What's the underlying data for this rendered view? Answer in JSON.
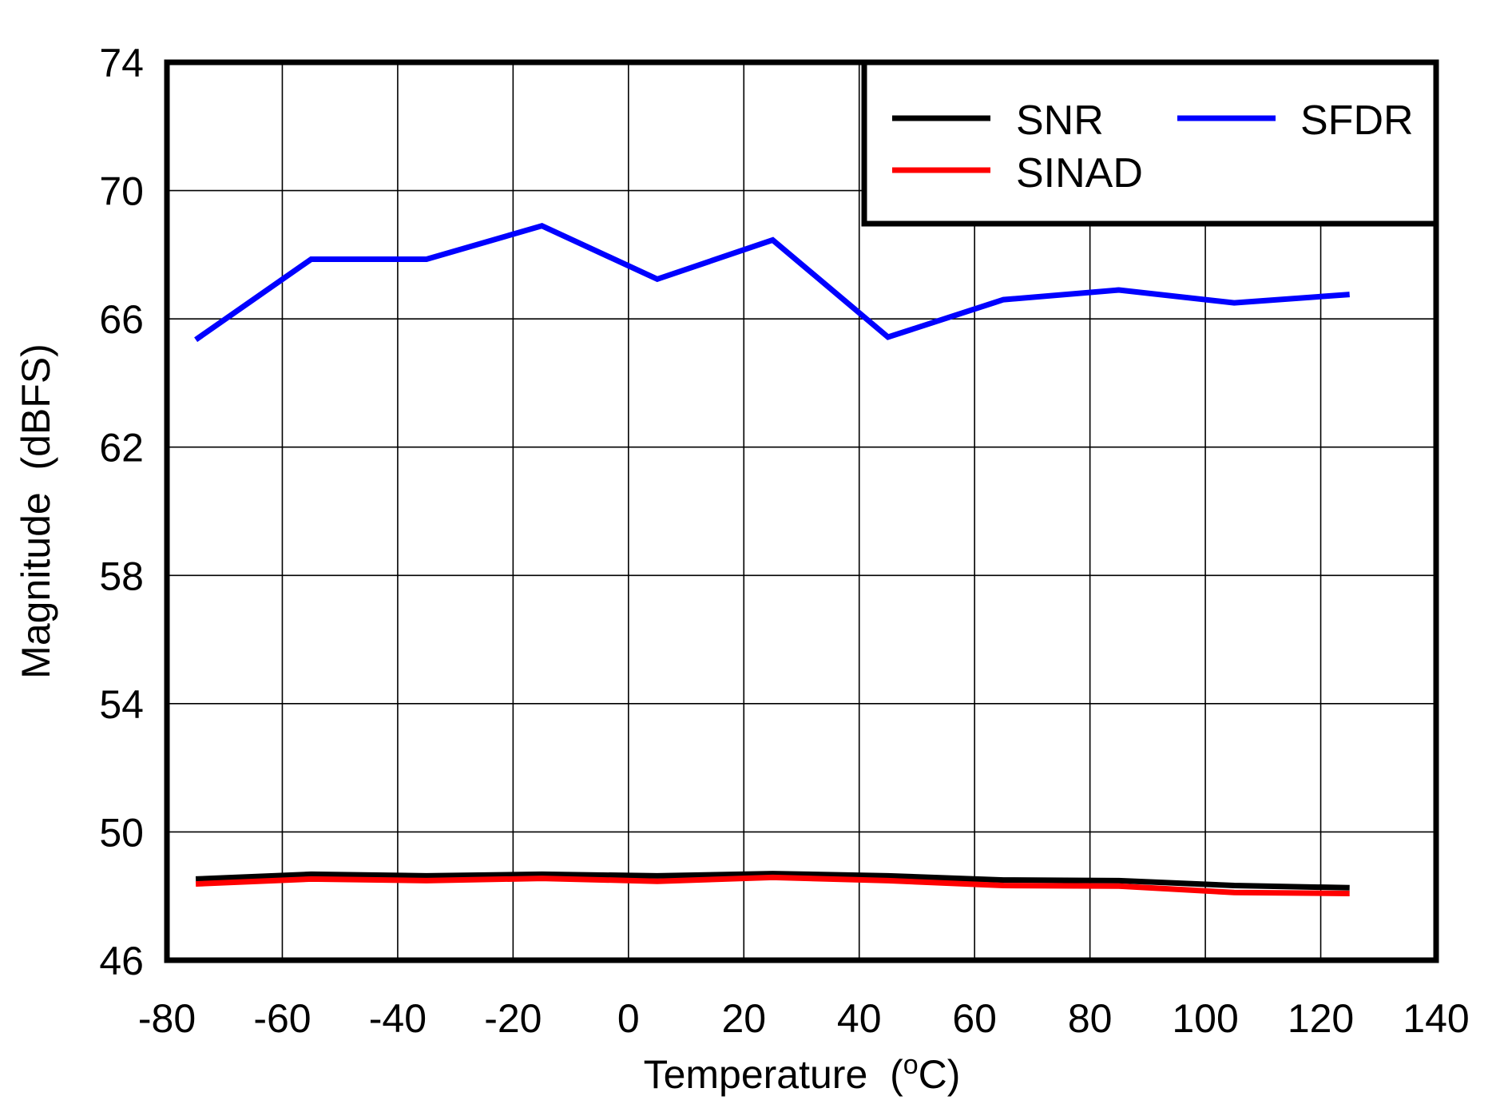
{
  "chart_data": {
    "type": "line",
    "title": "",
    "xlabel": "Temperature",
    "xlabel_unit_prefix": "(",
    "xlabel_unit_sup": "o",
    "xlabel_unit_suffix": "C)",
    "ylabel": "Magnitude  (dBFS)",
    "xlim": [
      -80,
      140
    ],
    "ylim": [
      46,
      74
    ],
    "xticks": [
      -80,
      -60,
      -40,
      -20,
      0,
      20,
      40,
      60,
      80,
      100,
      120,
      140
    ],
    "yticks": [
      46,
      50,
      54,
      58,
      62,
      66,
      70,
      74
    ],
    "grid": true,
    "legend_position": "upper right",
    "x": [
      -75,
      -55,
      -35,
      -15,
      5,
      25,
      45,
      65,
      85,
      105,
      125
    ],
    "series": [
      {
        "name": "SNR",
        "color": "#000000",
        "values": [
          48.53,
          48.68,
          48.63,
          48.68,
          48.63,
          48.7,
          48.63,
          48.5,
          48.48,
          48.33,
          48.26
        ]
      },
      {
        "name": "SINAD",
        "color": "#ff0000",
        "values": [
          48.38,
          48.53,
          48.48,
          48.55,
          48.46,
          48.58,
          48.48,
          48.33,
          48.31,
          48.11,
          48.08
        ]
      },
      {
        "name": "SFDR",
        "color": "#0000ff",
        "values": [
          65.35,
          67.86,
          67.86,
          68.9,
          67.24,
          68.46,
          65.43,
          66.6,
          66.9,
          66.5,
          66.76
        ]
      }
    ]
  }
}
